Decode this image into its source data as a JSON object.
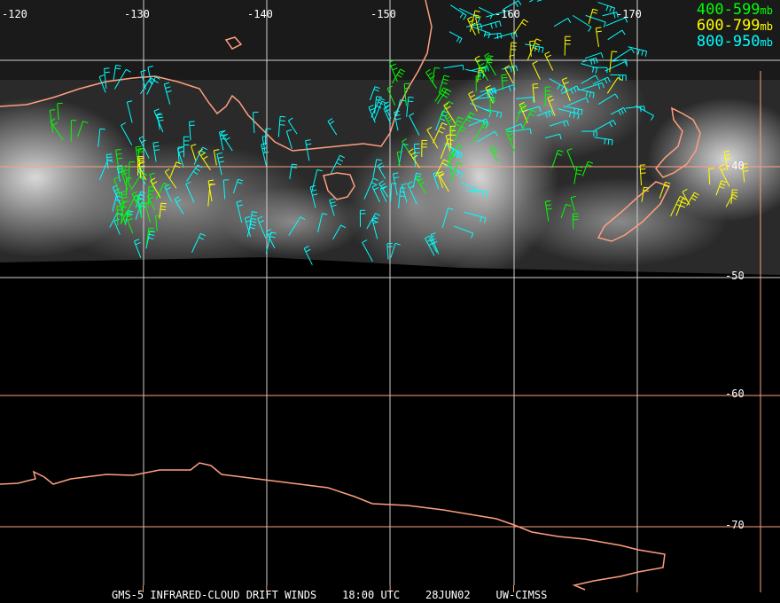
{
  "map": {
    "longitude_labels": [
      "-120",
      "-130",
      "-140",
      "-150",
      "-160",
      "-170"
    ],
    "latitude_labels": [
      "-40",
      "-50",
      "-60",
      "-70"
    ],
    "legend": [
      {
        "range": "400-599",
        "unit": "mb",
        "color": "#00ff00"
      },
      {
        "range": "600-799",
        "unit": "mb",
        "color": "#ffff00"
      },
      {
        "range": "800-950",
        "unit": "mb",
        "color": "#00ffff"
      }
    ],
    "caption": {
      "product": "GMS-5 INFRARED-CLOUD DRIFT WINDS",
      "time": "18:00 UTC",
      "date": "28JUN02",
      "source": "UW-CIMSS"
    },
    "colors": {
      "coastline": "#ff9f7f",
      "grid_lat": "#ff9f7f",
      "grid_white": "#d0d0d0",
      "background": "#000000"
    }
  }
}
